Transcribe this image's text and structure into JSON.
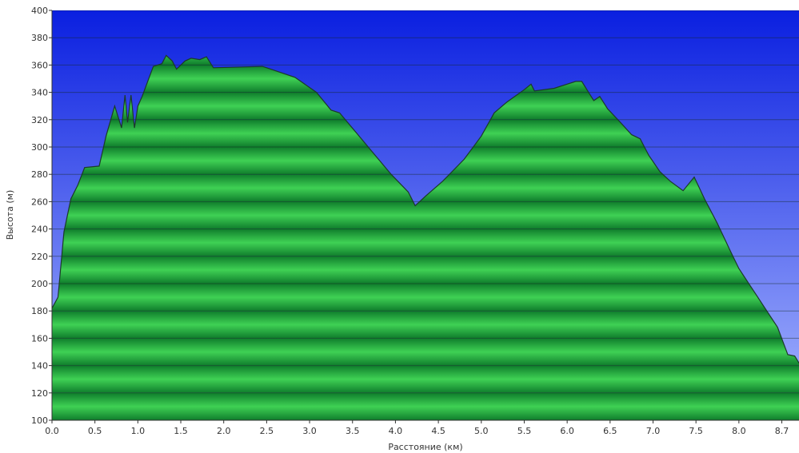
{
  "chart_data": {
    "type": "area",
    "xlabel": "Расстояние   (км)",
    "ylabel": "Высота (м)",
    "xlim": [
      0,
      8.7
    ],
    "ylim": [
      100,
      400
    ],
    "x_ticks": [
      "0.0",
      "0.5",
      "1.0",
      "1.5",
      "2.0",
      "2.5",
      "3.0",
      "3.5",
      "4.0",
      "4.5",
      "5.0",
      "5.5",
      "6.0",
      "6.5",
      "7.0",
      "7.5",
      "8.0",
      "8.7"
    ],
    "y_ticks": [
      "100",
      "120",
      "140",
      "160",
      "180",
      "200",
      "220",
      "240",
      "260",
      "280",
      "300",
      "320",
      "340",
      "360",
      "380",
      "400"
    ],
    "grid": true,
    "colors": {
      "sky_top": "#0a1fe0",
      "sky_bottom": "#a9b8ff",
      "fill_dark": "#0f7d2c",
      "fill_light": "#3fd154",
      "outline": "#1b3a2a"
    },
    "points": [
      [
        0.0,
        182
      ],
      [
        0.07,
        190
      ],
      [
        0.14,
        238
      ],
      [
        0.22,
        262
      ],
      [
        0.3,
        272
      ],
      [
        0.38,
        285
      ],
      [
        0.55,
        286
      ],
      [
        0.63,
        308
      ],
      [
        0.73,
        330
      ],
      [
        0.81,
        314
      ],
      [
        0.85,
        338
      ],
      [
        0.88,
        318
      ],
      [
        0.92,
        338
      ],
      [
        0.96,
        314
      ],
      [
        1.0,
        330
      ],
      [
        1.05,
        337
      ],
      [
        1.18,
        359
      ],
      [
        1.28,
        361
      ],
      [
        1.33,
        367
      ],
      [
        1.4,
        363
      ],
      [
        1.45,
        357
      ],
      [
        1.55,
        363
      ],
      [
        1.62,
        365
      ],
      [
        1.72,
        364
      ],
      [
        1.8,
        366
      ],
      [
        1.88,
        358
      ],
      [
        2.45,
        359
      ],
      [
        2.5,
        358
      ],
      [
        2.83,
        351
      ],
      [
        3.08,
        340
      ],
      [
        3.25,
        327
      ],
      [
        3.35,
        325
      ],
      [
        3.55,
        310
      ],
      [
        3.75,
        295
      ],
      [
        3.95,
        280
      ],
      [
        4.15,
        267
      ],
      [
        4.23,
        257
      ],
      [
        4.35,
        264
      ],
      [
        4.55,
        275
      ],
      [
        4.8,
        291
      ],
      [
        5.0,
        308
      ],
      [
        5.15,
        325
      ],
      [
        5.3,
        333
      ],
      [
        5.5,
        342
      ],
      [
        5.58,
        346
      ],
      [
        5.62,
        341
      ],
      [
        5.85,
        343
      ],
      [
        6.0,
        346
      ],
      [
        6.1,
        348
      ],
      [
        6.17,
        348
      ],
      [
        6.23,
        342
      ],
      [
        6.31,
        334
      ],
      [
        6.38,
        337
      ],
      [
        6.47,
        328
      ],
      [
        6.62,
        318
      ],
      [
        6.75,
        309
      ],
      [
        6.85,
        306
      ],
      [
        6.95,
        294
      ],
      [
        7.08,
        282
      ],
      [
        7.2,
        275
      ],
      [
        7.35,
        268
      ],
      [
        7.48,
        278
      ],
      [
        7.6,
        262
      ],
      [
        7.75,
        244
      ],
      [
        7.9,
        224
      ],
      [
        8.0,
        211
      ],
      [
        8.2,
        192
      ],
      [
        8.45,
        168
      ],
      [
        8.57,
        148
      ],
      [
        8.65,
        147
      ],
      [
        8.72,
        140
      ]
    ]
  }
}
